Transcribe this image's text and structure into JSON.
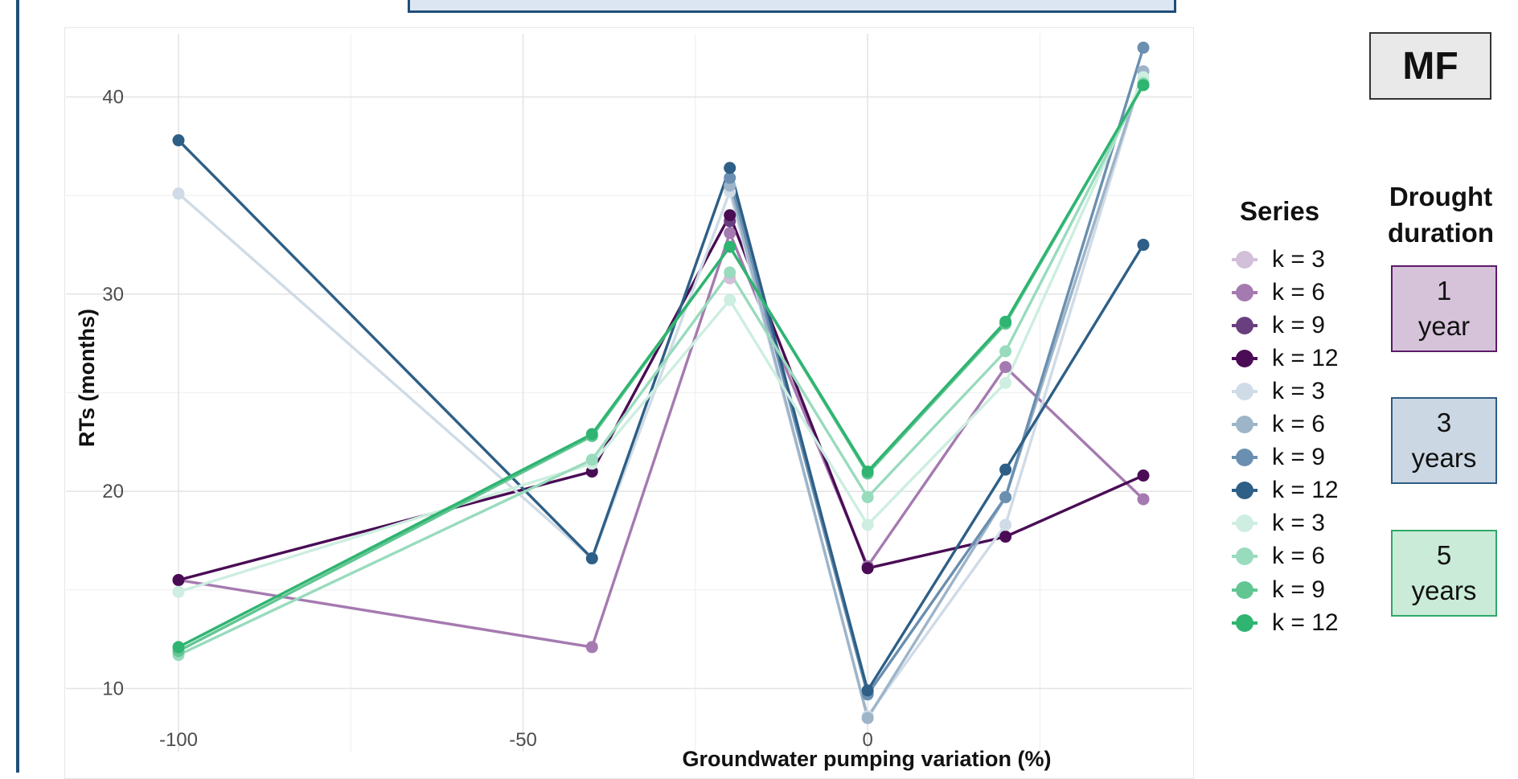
{
  "badge": "MF",
  "legend": {
    "title": "Series",
    "items": [
      {
        "label": "k = 3",
        "color": "#d2bfd9"
      },
      {
        "label": "k = 6",
        "color": "#a57ab0"
      },
      {
        "label": "k = 9",
        "color": "#6a3f80"
      },
      {
        "label": "k = 12",
        "color": "#4a0c55"
      },
      {
        "label": "k = 3",
        "color": "#cfdbe6"
      },
      {
        "label": "k = 6",
        "color": "#9db4c9"
      },
      {
        "label": "k = 9",
        "color": "#6a8fb0"
      },
      {
        "label": "k = 12",
        "color": "#2e5f86"
      },
      {
        "label": "k = 3",
        "color": "#cdeee0"
      },
      {
        "label": "k = 6",
        "color": "#98dbbd"
      },
      {
        "label": "k = 9",
        "color": "#62c693"
      },
      {
        "label": "k = 12",
        "color": "#2fb471"
      }
    ]
  },
  "drought": {
    "title_line1": "Drought",
    "title_line2": "duration",
    "boxes": [
      {
        "num": "1",
        "unit": "year",
        "fill": "#d6c3da",
        "border": "#5b1a68"
      },
      {
        "num": "3",
        "unit": "years",
        "fill": "#cbd7e3",
        "border": "#2d5c84"
      },
      {
        "num": "5",
        "unit": "years",
        "fill": "#c9ebd7",
        "border": "#2fa86a"
      }
    ]
  },
  "chart_data": {
    "type": "line",
    "xlabel": "Groundwater pumping variation (%)",
    "ylabel": "RTs (months)",
    "x": [
      -100,
      -40,
      -20,
      0,
      20,
      40
    ],
    "xticks": [
      -100,
      -50,
      0
    ],
    "yticks": [
      10,
      20,
      30,
      40
    ],
    "xlim": [
      -100,
      40
    ],
    "ylim": [
      7,
      43
    ],
    "grid": true,
    "series": [
      {
        "name": "k = 3",
        "drought": "1 year",
        "color": "#d2bfd9",
        "values": [
          null,
          null,
          30.8,
          null,
          null,
          null
        ]
      },
      {
        "name": "k = 6",
        "drought": "1 year",
        "color": "#a57ab0",
        "values": [
          15.5,
          12.1,
          33.1,
          16.2,
          26.3,
          19.6
        ]
      },
      {
        "name": "k = 9",
        "drought": "1 year",
        "color": "#6a3f80",
        "values": [
          null,
          null,
          33.7,
          null,
          null,
          null
        ]
      },
      {
        "name": "k = 12",
        "drought": "1 year",
        "color": "#4a0c55",
        "values": [
          15.5,
          21.0,
          34.0,
          16.1,
          17.7,
          20.8
        ]
      },
      {
        "name": "k = 3",
        "drought": "3 years",
        "color": "#cfdbe6",
        "values": [
          35.1,
          16.6,
          35.2,
          8.6,
          18.3,
          41.3
        ]
      },
      {
        "name": "k = 6",
        "drought": "3 years",
        "color": "#9db4c9",
        "values": [
          null,
          null,
          35.5,
          8.5,
          19.7,
          41.3
        ]
      },
      {
        "name": "k = 9",
        "drought": "3 years",
        "color": "#6a8fb0",
        "values": [
          null,
          null,
          35.9,
          9.7,
          19.7,
          42.5
        ]
      },
      {
        "name": "k = 12",
        "drought": "3 years",
        "color": "#2e5f86",
        "values": [
          37.8,
          16.6,
          36.4,
          9.9,
          21.1,
          32.5
        ]
      },
      {
        "name": "k = 3",
        "drought": "5 years",
        "color": "#cdeee0",
        "values": [
          14.9,
          21.4,
          29.7,
          18.3,
          25.5,
          41.0
        ]
      },
      {
        "name": "k = 6",
        "drought": "5 years",
        "color": "#98dbbd",
        "values": [
          11.7,
          21.6,
          31.1,
          19.7,
          27.1,
          40.7
        ]
      },
      {
        "name": "k = 9",
        "drought": "5 years",
        "color": "#62c693",
        "values": [
          11.9,
          22.8,
          32.4,
          20.9,
          28.5,
          40.6
        ]
      },
      {
        "name": "k = 12",
        "drought": "5 years",
        "color": "#2fb471",
        "values": [
          12.1,
          22.9,
          32.4,
          21.0,
          28.6,
          40.6
        ]
      }
    ]
  }
}
